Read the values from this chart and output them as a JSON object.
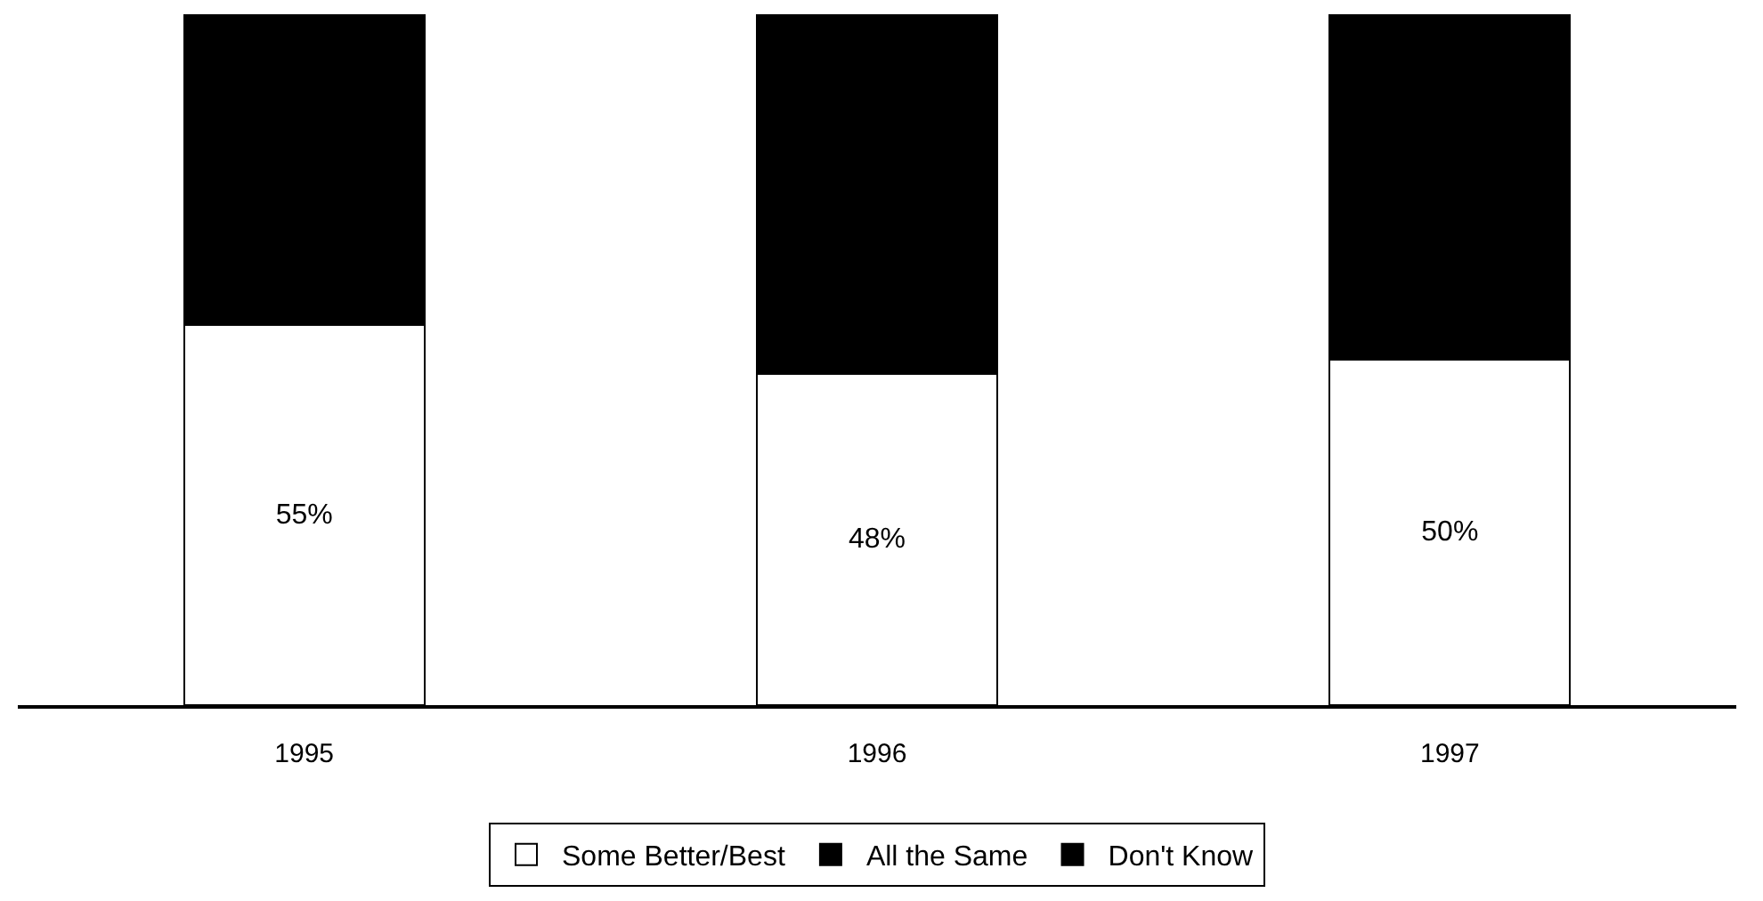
{
  "chart_data": {
    "type": "bar",
    "stacked": true,
    "categories": [
      "1995",
      "1996",
      "1997"
    ],
    "series": [
      {
        "name": "Some Better/Best",
        "color": "#ffffff",
        "values": [
          55,
          48,
          50
        ],
        "value_labels": [
          "55%",
          "48%",
          "50%"
        ]
      },
      {
        "name": "All the Same",
        "color": "#000000",
        "values": [
          45,
          52,
          50
        ]
      },
      {
        "name": "Don't Know",
        "color": "#000000",
        "values": [
          null,
          null,
          null
        ]
      }
    ],
    "ylim": [
      0,
      100
    ],
    "tick_labels": "x",
    "legend": "bottom"
  }
}
